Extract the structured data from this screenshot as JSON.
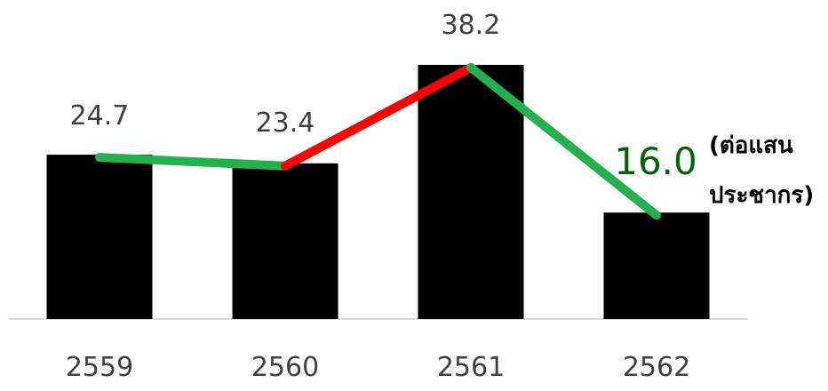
{
  "chart_data": {
    "type": "bar",
    "categories": [
      "2559",
      "2560",
      "2561",
      "2562"
    ],
    "values": [
      24.7,
      23.4,
      38.2,
      16.0
    ],
    "value_labels": [
      "24.7",
      "23.4",
      "38.2",
      "16.0"
    ],
    "ylim": [
      0,
      45
    ],
    "grid": false,
    "unit_label": "(ต่อแสน\nประชากร)",
    "overlay_line": {
      "type": "line",
      "values": [
        24.7,
        23.4,
        38.2,
        16.0
      ],
      "segment_colors": [
        "#22b14c",
        "#ff0000",
        "#22b14c"
      ]
    },
    "colors": {
      "bar": "#000000",
      "axis": "#d9d9d9",
      "label": "#404040",
      "highlight_label": "#006400"
    },
    "highlight_index": 3
  }
}
